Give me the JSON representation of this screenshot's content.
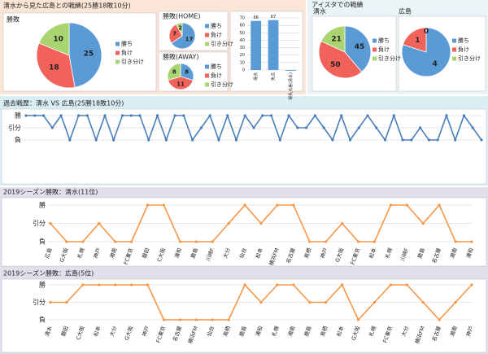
{
  "panels": [
    "清水から見た広島との戦績(25勝18敗10分)",
    "アイスタでの戦績"
  ],
  "chart_data": [
    {
      "type": "pie",
      "title": "勝敗",
      "categories": [
        "勝ち",
        "負け",
        "引き分け"
      ],
      "values": [
        25,
        18,
        10
      ],
      "colors": [
        "#5b9bd5",
        "#f0625a",
        "#a9d46f"
      ]
    },
    {
      "type": "pie",
      "title": "勝敗(HOME)",
      "categories": [
        "勝ち",
        "負け",
        "引き分け"
      ],
      "values": [
        17,
        7,
        2
      ],
      "colors": [
        "#5b9bd5",
        "#f0625a",
        "#a9d46f"
      ]
    },
    {
      "type": "pie",
      "title": "勝敗(AWAY)",
      "categories": [
        "勝ち",
        "負け",
        "引き分け"
      ],
      "values": [
        8,
        11,
        8
      ],
      "colors": [
        "#5b9bd5",
        "#f0625a",
        "#a9d46f"
      ]
    },
    {
      "type": "bar",
      "categories": [
        "得点",
        "失点",
        "得失点差(清水)"
      ],
      "values": [
        66,
        67,
        -1
      ],
      "value_labels": [
        "66",
        "67",
        null
      ],
      "color": "#5b9bd5",
      "ylim": [
        0,
        70
      ],
      "yticks": [
        0,
        10,
        20,
        30,
        40,
        50,
        60,
        70
      ],
      "grid": true
    },
    {
      "type": "pie",
      "title": "清水",
      "categories": [
        "勝ち",
        "負け",
        "引き分け"
      ],
      "values": [
        45,
        50,
        21
      ],
      "colors": [
        "#5b9bd5",
        "#f0625a",
        "#a9d46f"
      ]
    },
    {
      "type": "pie",
      "title": "広島",
      "categories": [
        "勝ち",
        "負け",
        "引き分け"
      ],
      "values": [
        4,
        1,
        0
      ],
      "colors": [
        "#5b9bd5",
        "#f0625a",
        "#a9d46f"
      ]
    },
    {
      "type": "line",
      "title": "過去戦歴：清水 VS 広島(25勝18敗10分)",
      "color": "#4a7ebb",
      "categories": [
        null,
        null,
        null,
        null,
        null,
        null,
        null,
        null,
        null,
        null,
        null,
        null,
        null,
        null,
        null,
        null,
        null,
        null,
        null,
        null,
        null,
        null,
        null,
        null,
        null,
        null,
        null,
        null,
        null,
        null,
        null,
        null,
        null,
        null,
        null,
        null,
        null,
        null,
        null,
        null,
        null,
        null,
        null,
        null,
        null,
        null,
        null,
        null,
        null,
        null,
        null,
        null,
        null
      ],
      "values": [
        2,
        2,
        2,
        1,
        2,
        0,
        2,
        2,
        0,
        2,
        0,
        2,
        2,
        2,
        0,
        2,
        0,
        2,
        2,
        0,
        1,
        2,
        0,
        2,
        0,
        2,
        1,
        2,
        2,
        0,
        2,
        1,
        1,
        2,
        1,
        0,
        2,
        0,
        1,
        2,
        1,
        0,
        2,
        0,
        0,
        1,
        0,
        0,
        2,
        0,
        2,
        1,
        0
      ],
      "ylim": [
        0,
        2
      ],
      "yticks": [
        {
          "value": 0,
          "label": "負"
        },
        {
          "value": 1,
          "label": "引分"
        },
        {
          "value": 2,
          "label": "勝"
        }
      ],
      "grid": true
    },
    {
      "type": "line",
      "title": "2019シーズン勝敗：清水(11位)",
      "color": "#f79646",
      "categories": [
        "広島",
        "G大阪",
        "札幌",
        "神戸",
        "湘南",
        "FC東京",
        "磐田",
        "C大阪",
        "浦和",
        "鹿島",
        "川崎F",
        "大分",
        "仙台",
        "松本",
        "横浜FM",
        "名古屋",
        "鳥栖",
        "神戸",
        "G大阪",
        "FC東京",
        "松本",
        "札幌",
        "川崎F",
        "鹿島",
        "名古屋",
        "湘南",
        "浦和"
      ],
      "values": [
        1,
        0,
        0,
        1,
        0,
        0,
        2,
        2,
        0,
        0,
        0,
        1,
        2,
        1,
        2,
        2,
        0,
        0,
        1,
        0,
        0,
        2,
        2,
        1,
        2,
        0,
        0
      ],
      "ylim": [
        0,
        2
      ],
      "yticks": [
        {
          "value": 0,
          "label": "負"
        },
        {
          "value": 1,
          "label": "引分"
        },
        {
          "value": 2,
          "label": "勝"
        }
      ],
      "grid": true
    },
    {
      "type": "line",
      "title": "2019シーズン勝敗：広島(5位)",
      "color": "#f79646",
      "categories": [
        "清水",
        "磐田",
        "C大阪",
        "松本",
        "大分",
        "G大阪",
        "神戸",
        "FC東京",
        "名古屋",
        "横浜FM",
        "仙台",
        "鳥栖",
        "鹿島",
        "浦和",
        "札幌",
        "湘南",
        "鹿島",
        "鳥栖",
        "松本",
        "G大阪",
        "札幌",
        "FC東京",
        "大分",
        "横浜FM",
        "名古屋",
        "湘南",
        "神戸"
      ],
      "values": [
        1,
        1,
        2,
        2,
        2,
        2,
        2,
        0,
        0,
        0,
        0,
        0,
        2,
        1,
        2,
        2,
        1,
        1,
        2,
        0,
        1,
        2,
        2,
        1,
        0,
        1,
        2
      ],
      "ylim": [
        0,
        2
      ],
      "yticks": [
        {
          "value": 0,
          "label": "負"
        },
        {
          "value": 1,
          "label": "引分"
        },
        {
          "value": 2,
          "label": "勝"
        }
      ],
      "grid": true
    }
  ]
}
